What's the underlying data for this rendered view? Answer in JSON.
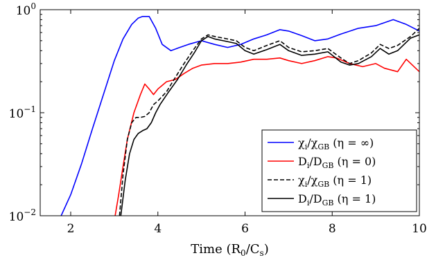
{
  "chart_data": {
    "type": "line",
    "xlabel": "Time (R₀/Cₛ)",
    "ylabel": "",
    "xlim": [
      1.3,
      10
    ],
    "ylim": [
      0.01,
      1
    ],
    "yscale": "log",
    "x_ticks": [
      2,
      4,
      6,
      8,
      10
    ],
    "x_tick_labels": [
      "2",
      "4",
      "6",
      "8",
      "10"
    ],
    "y_ticks": [
      0.01,
      0.1,
      1
    ],
    "y_tick_labels": [
      {
        "base": "10",
        "exp": "−2"
      },
      {
        "base": "10",
        "exp": "−1"
      },
      {
        "base": "10",
        "exp": "0"
      }
    ],
    "grid": false,
    "legend_position": "bottom-right",
    "series": [
      {
        "name": "χᵢ/χGB (η = ∞)",
        "legend": {
          "main": "χ",
          "sub": "i",
          "mid": "/χ",
          "sub2": "GB",
          "tail": " (η = ∞)"
        },
        "color": "#0000ff",
        "style": "solid",
        "x": [
          1.78,
          2.0,
          2.25,
          2.5,
          2.75,
          3.0,
          3.2,
          3.4,
          3.55,
          3.65,
          3.8,
          3.95,
          4.1,
          4.3,
          4.5,
          4.7,
          5.0,
          5.3,
          5.6,
          5.9,
          6.2,
          6.5,
          6.8,
          7.0,
          7.3,
          7.6,
          7.9,
          8.2,
          8.6,
          9.0,
          9.4,
          9.7,
          10.0
        ],
        "y": [
          0.01,
          0.016,
          0.032,
          0.07,
          0.15,
          0.32,
          0.52,
          0.72,
          0.83,
          0.86,
          0.86,
          0.66,
          0.46,
          0.4,
          0.43,
          0.46,
          0.5,
          0.46,
          0.43,
          0.46,
          0.52,
          0.57,
          0.64,
          0.62,
          0.56,
          0.5,
          0.52,
          0.58,
          0.66,
          0.7,
          0.8,
          0.72,
          0.62
        ]
      },
      {
        "name": "Dᵢ/DGB (η = 0)",
        "legend": {
          "main": "D",
          "sub": "i",
          "mid": "/D",
          "sub2": "GB",
          "tail": " (η = 0)"
        },
        "color": "#ff0000",
        "style": "solid",
        "x": [
          3.02,
          3.1,
          3.2,
          3.3,
          3.45,
          3.6,
          3.7,
          3.8,
          3.9,
          4.0,
          4.2,
          4.4,
          4.6,
          4.8,
          5.0,
          5.3,
          5.6,
          5.9,
          6.2,
          6.5,
          6.8,
          7.0,
          7.3,
          7.6,
          7.9,
          8.1,
          8.4,
          8.7,
          9.0,
          9.2,
          9.5,
          9.7,
          10.0
        ],
        "y": [
          0.01,
          0.016,
          0.03,
          0.055,
          0.1,
          0.15,
          0.19,
          0.17,
          0.15,
          0.17,
          0.2,
          0.21,
          0.24,
          0.27,
          0.29,
          0.3,
          0.3,
          0.31,
          0.33,
          0.33,
          0.34,
          0.32,
          0.3,
          0.32,
          0.35,
          0.34,
          0.3,
          0.28,
          0.3,
          0.27,
          0.25,
          0.33,
          0.25
        ]
      },
      {
        "name": "χᵢ/χGB (η = 1)",
        "legend": {
          "main": "χ",
          "sub": "i",
          "mid": "/χ",
          "sub2": "GB",
          "tail": " (η = 1)"
        },
        "color": "#000000",
        "style": "dashed",
        "x": [
          3.12,
          3.2,
          3.3,
          3.4,
          3.5,
          3.6,
          3.7,
          3.8,
          3.9,
          4.0,
          4.2,
          4.4,
          4.6,
          4.8,
          5.0,
          5.15,
          5.3,
          5.5,
          5.8,
          6.0,
          6.2,
          6.5,
          6.8,
          7.0,
          7.3,
          7.6,
          7.9,
          8.2,
          8.4,
          8.6,
          8.9,
          9.1,
          9.3,
          9.5,
          9.8,
          10.0
        ],
        "y": [
          0.01,
          0.025,
          0.055,
          0.08,
          0.09,
          0.09,
          0.092,
          0.1,
          0.12,
          0.13,
          0.16,
          0.22,
          0.3,
          0.4,
          0.52,
          0.57,
          0.55,
          0.53,
          0.5,
          0.43,
          0.4,
          0.45,
          0.5,
          0.43,
          0.39,
          0.4,
          0.42,
          0.34,
          0.3,
          0.32,
          0.38,
          0.46,
          0.42,
          0.45,
          0.55,
          0.66
        ]
      },
      {
        "name": "Dᵢ/DGB (η = 1)",
        "legend": {
          "main": "D",
          "sub": "i",
          "mid": "/D",
          "sub2": "GB",
          "tail": " (η = 1)"
        },
        "color": "#000000",
        "style": "solid",
        "x": [
          3.15,
          3.25,
          3.35,
          3.45,
          3.55,
          3.65,
          3.75,
          3.85,
          3.95,
          4.05,
          4.25,
          4.45,
          4.65,
          4.85,
          5.0,
          5.15,
          5.3,
          5.5,
          5.8,
          6.0,
          6.2,
          6.5,
          6.8,
          7.0,
          7.3,
          7.6,
          7.9,
          8.2,
          8.4,
          8.6,
          8.9,
          9.1,
          9.3,
          9.5,
          9.8,
          10.0
        ],
        "y": [
          0.01,
          0.022,
          0.04,
          0.055,
          0.063,
          0.067,
          0.07,
          0.08,
          0.1,
          0.12,
          0.16,
          0.21,
          0.29,
          0.39,
          0.5,
          0.55,
          0.52,
          0.5,
          0.47,
          0.4,
          0.37,
          0.41,
          0.46,
          0.4,
          0.36,
          0.37,
          0.39,
          0.31,
          0.29,
          0.3,
          0.35,
          0.42,
          0.37,
          0.4,
          0.53,
          0.57
        ]
      }
    ]
  }
}
